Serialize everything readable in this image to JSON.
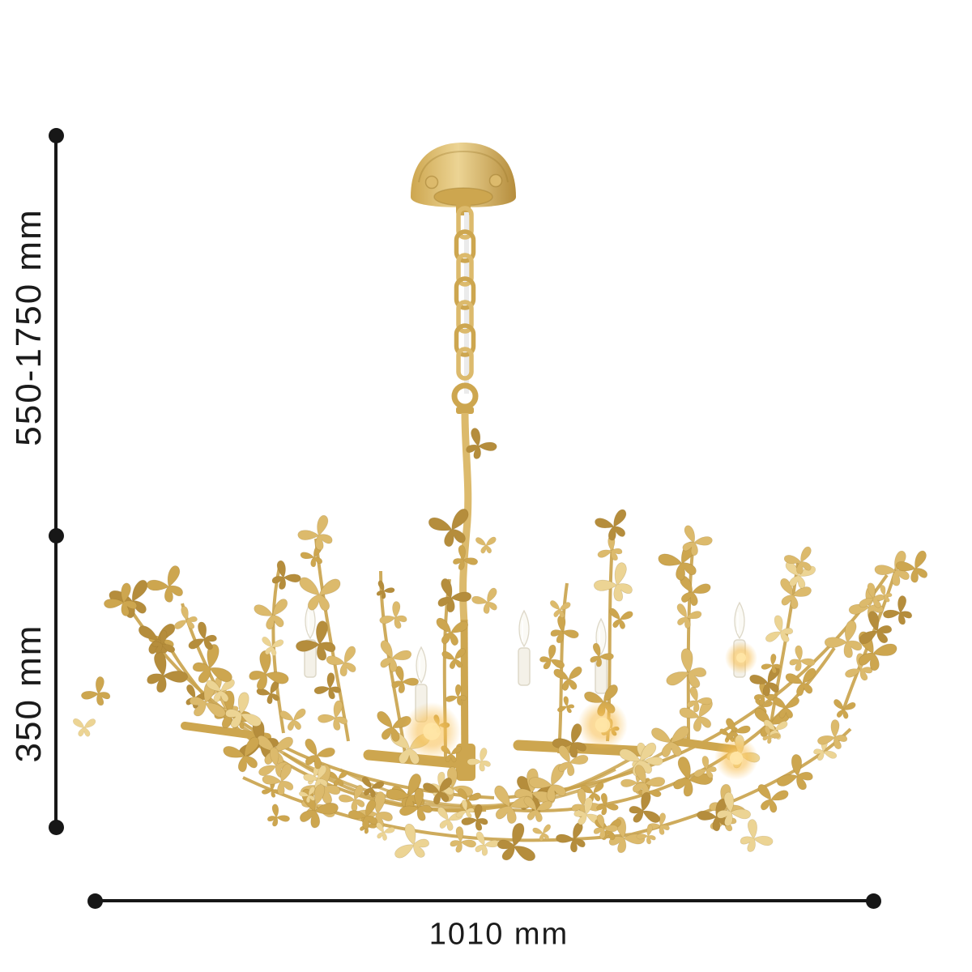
{
  "diagram": {
    "type": "product-dimension-diagram",
    "product": "gold butterfly chandelier",
    "dimensions": {
      "suspension_height": {
        "label": "550-1750 mm"
      },
      "body_height": {
        "label": "350 mm"
      },
      "width": {
        "label": "1010 mm"
      }
    },
    "colors": {
      "line": "#171717",
      "text": "#1b1b1b",
      "background": "#ffffff"
    }
  },
  "illustration": {
    "name": "gold-butterfly-chandelier",
    "colors": {
      "gold_light": "#ecd494",
      "gold": "#dcba6c",
      "gold_mid": "#cda64f",
      "gold_dark": "#b58d3c",
      "gold_deep": "#9e7a2e",
      "branch": "#c9a24a",
      "candle": "#f4f1e8",
      "candle_edge": "#ddd8c8",
      "glow": "#f7bd4e",
      "glow_core": "#ffe6a6",
      "cord": "#ebebeb"
    }
  }
}
